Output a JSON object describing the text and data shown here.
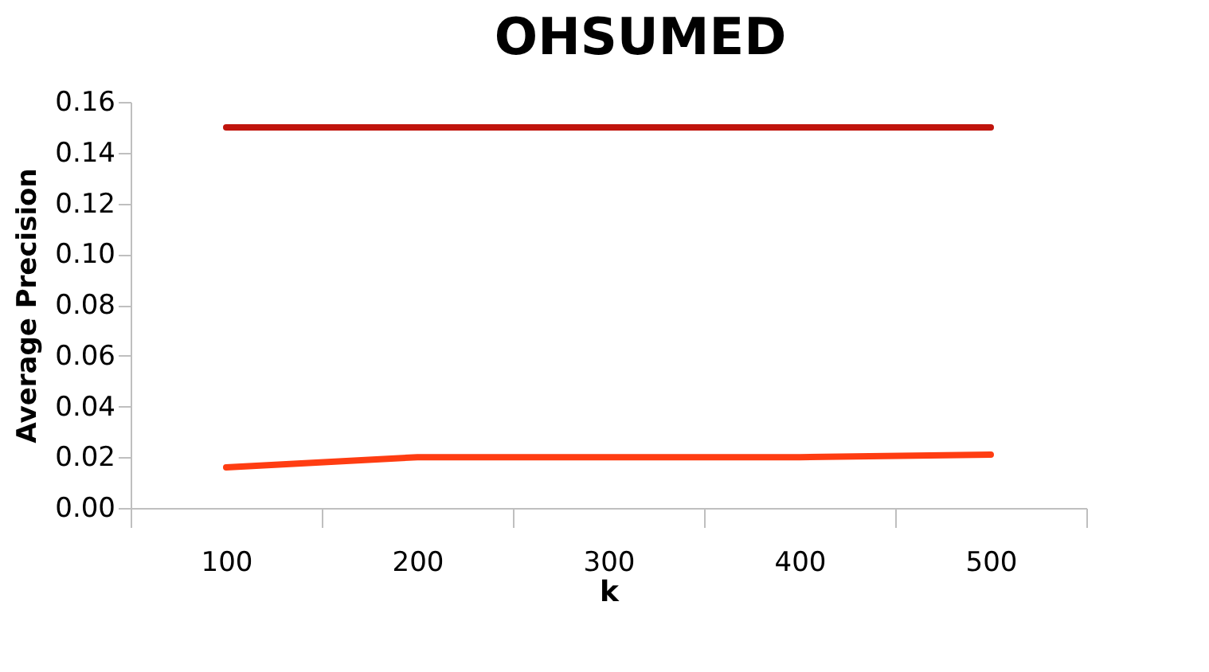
{
  "chart_data": {
    "type": "line",
    "title": "OHSUMED",
    "xlabel": "k",
    "ylabel": "Average Precision",
    "categories": [
      "100",
      "200",
      "300",
      "400",
      "500"
    ],
    "series": [
      {
        "color": "#c0140c",
        "values": [
          0.15,
          0.15,
          0.15,
          0.15,
          0.15
        ]
      },
      {
        "color": "#ff3d12",
        "values": [
          0.016,
          0.02,
          0.02,
          0.02,
          0.021
        ]
      }
    ],
    "ylim": [
      0,
      0.16
    ],
    "yticks": [
      {
        "value": 0,
        "label": "0.00"
      },
      0.02,
      0.04,
      0.06,
      0.08,
      {
        "value": 0.1,
        "label": "0.10"
      },
      0.12,
      0.14,
      0.16
    ],
    "grid": false,
    "marker": "none",
    "line_style": "solid"
  }
}
